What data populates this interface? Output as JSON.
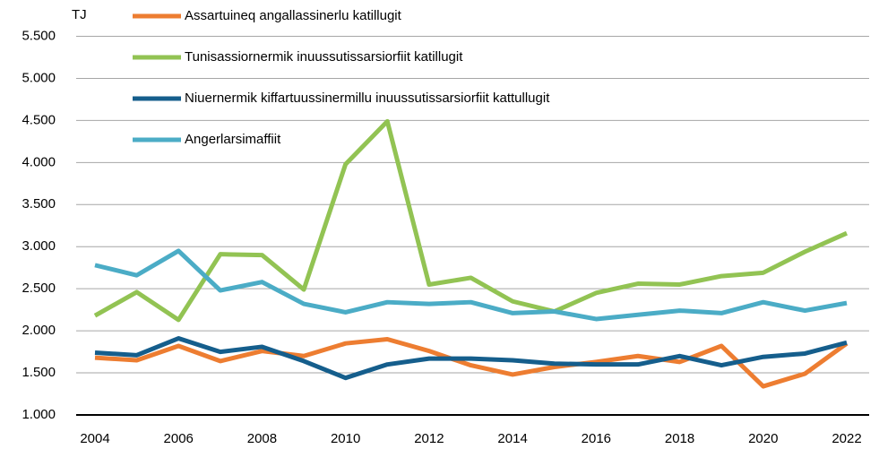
{
  "chart_data": {
    "type": "line",
    "unit": "TJ",
    "x": [
      2004,
      2005,
      2006,
      2007,
      2008,
      2009,
      2010,
      2011,
      2012,
      2013,
      2014,
      2015,
      2016,
      2017,
      2018,
      2019,
      2020,
      2021,
      2022
    ],
    "xlim": [
      2004,
      2022
    ],
    "xticks": [
      2004,
      2006,
      2008,
      2010,
      2012,
      2014,
      2016,
      2018,
      2020,
      2022
    ],
    "ylim": [
      1000,
      5500
    ],
    "yticks": [
      {
        "value": 1000,
        "label": "1.000"
      },
      {
        "value": 1500,
        "label": "1.500"
      },
      {
        "value": 2000,
        "label": "2.000"
      },
      {
        "value": 2500,
        "label": "2.500"
      },
      {
        "value": 3000,
        "label": "3.000"
      },
      {
        "value": 3500,
        "label": "3.500"
      },
      {
        "value": 4000,
        "label": "4.000"
      },
      {
        "value": 4500,
        "label": "4.500"
      },
      {
        "value": 5000,
        "label": "5.000"
      },
      {
        "value": 5500,
        "label": "5.500"
      }
    ],
    "grid": true,
    "legend": "top-left",
    "series": [
      {
        "name": "Assartuineq angallassinerlu katillugit",
        "color": "#ed7d31",
        "values": [
          1680,
          1650,
          1820,
          1640,
          1760,
          1700,
          1850,
          1900,
          1760,
          1590,
          1480,
          1570,
          1630,
          1700,
          1630,
          1820,
          1340,
          1490,
          1850
        ]
      },
      {
        "name": "Tunisassiornermik inuussutissarsiorfiit katillugit",
        "color": "#92c353",
        "values": [
          2180,
          2460,
          2130,
          2910,
          2900,
          2490,
          3980,
          4490,
          2550,
          2630,
          2350,
          2230,
          2450,
          2560,
          2550,
          2650,
          2690,
          2940,
          3160
        ]
      },
      {
        "name": "Niuernermik kiffartuussinermillu inuussutissarsiorfiit kattullugit",
        "color": "#155e8c",
        "values": [
          1740,
          1710,
          1910,
          1750,
          1810,
          1640,
          1440,
          1600,
          1670,
          1670,
          1650,
          1610,
          1600,
          1600,
          1700,
          1590,
          1690,
          1730,
          1860
        ]
      },
      {
        "name": "Angerlarsimaffiit",
        "color": "#4bacc6",
        "values": [
          2780,
          2660,
          2950,
          2480,
          2580,
          2320,
          2220,
          2340,
          2320,
          2340,
          2210,
          2230,
          2140,
          2190,
          2240,
          2210,
          2340,
          2240,
          2330
        ]
      }
    ]
  }
}
